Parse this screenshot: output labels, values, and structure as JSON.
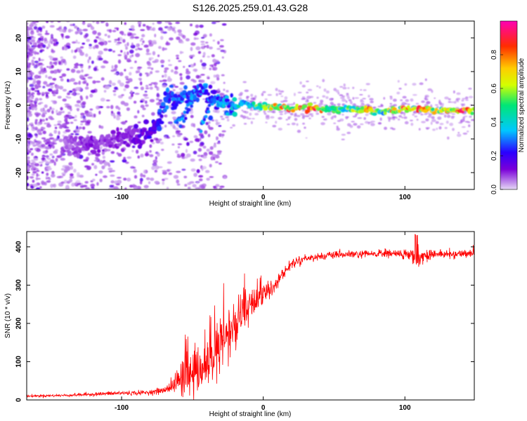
{
  "figure_title": "S126.2025.259.01.43.G28",
  "chart_data": [
    {
      "type": "heatmap",
      "title": "S126.2025.259.01.43.G28",
      "xlabel": "Height of straight line (km)",
      "ylabel": "Frequency (Hz)",
      "xlim": [
        -167,
        149
      ],
      "ylim": [
        -25,
        25
      ],
      "xticks": [
        -100,
        0,
        100
      ],
      "yticks": [
        -20,
        -10,
        0,
        10,
        20
      ],
      "colorbar": {
        "label": "Normalized spectral amplitude",
        "range": [
          0,
          1
        ],
        "ticks": [
          0.0,
          0.2,
          0.4,
          0.6,
          0.8
        ],
        "tick_labels": [
          "0.0",
          "0.2",
          "0.4",
          "0.6",
          "0.8"
        ],
        "colors": [
          "#e6d9f5",
          "#7a00d9",
          "#2a00ff",
          "#00c8ff",
          "#00e676",
          "#d4ff00",
          "#ffcc00",
          "#ff2d00",
          "#ff00b4"
        ]
      },
      "ridge": {
        "x": [
          -140,
          -130,
          -120,
          -110,
          -100,
          -90,
          -80,
          -74,
          -70,
          -66,
          -62,
          -58,
          -54,
          -50,
          -46,
          -42,
          -38,
          -34,
          -30,
          -25,
          -20,
          -15,
          -10,
          -5,
          0,
          10,
          20,
          30,
          40,
          50,
          60,
          70,
          75,
          80,
          85,
          90,
          95,
          100,
          105,
          110,
          120,
          130,
          140,
          149
        ],
        "freq": [
          -11,
          -12,
          -11.5,
          -11,
          -10,
          -9,
          -8,
          -5,
          1,
          2,
          0,
          3,
          2,
          3,
          4,
          4,
          3,
          2,
          1,
          0,
          -1,
          1,
          0,
          -0.5,
          0,
          -0.5,
          -1,
          -1,
          -1,
          -1.2,
          -1.3,
          -1.5,
          -1.5,
          -1.8,
          -1.8,
          -1.5,
          -1.2,
          -1,
          -1,
          -1,
          -1.5,
          -1.6,
          -1.5,
          -1.5
        ],
        "amplitude": [
          0.08,
          0.1,
          0.12,
          0.1,
          0.12,
          0.15,
          0.2,
          0.25,
          0.3,
          0.32,
          0.28,
          0.35,
          0.3,
          0.35,
          0.3,
          0.32,
          0.3,
          0.3,
          0.4,
          0.35,
          0.4,
          0.45,
          0.5,
          0.55,
          0.6,
          0.75,
          0.85,
          0.9,
          0.9,
          0.6,
          0.55,
          0.75,
          0.85,
          0.6,
          0.5,
          0.8,
          0.65,
          0.9,
          0.7,
          0.9,
          0.7,
          0.75,
          0.9,
          0.8
        ]
      },
      "side_branch": {
        "x": [
          -62,
          -56,
          -50
        ],
        "freq": [
          -6,
          -3,
          0
        ]
      }
    },
    {
      "type": "line",
      "xlabel": "Height of straight line (km)",
      "ylabel": "SNR (10 * v/v)",
      "xlim": [
        -167,
        149
      ],
      "ylim": [
        0,
        440
      ],
      "xticks": [
        -100,
        0,
        100
      ],
      "yticks": [
        0,
        100,
        200,
        300,
        400
      ],
      "series": [
        {
          "name": "SNR",
          "color": "#ff0000",
          "x": [
            -167,
            -140,
            -120,
            -100,
            -90,
            -80,
            -70,
            -65,
            -60,
            -55,
            -50,
            -45,
            -40,
            -35,
            -30,
            -25,
            -20,
            -15,
            -10,
            -5,
            0,
            5,
            10,
            15,
            20,
            25,
            30,
            40,
            50,
            60,
            70,
            80,
            90,
            100,
            105,
            108,
            112,
            120,
            130,
            140,
            149
          ],
          "mean": [
            10,
            12,
            15,
            18,
            18,
            20,
            25,
            35,
            50,
            70,
            60,
            65,
            90,
            110,
            140,
            170,
            190,
            210,
            240,
            260,
            275,
            290,
            310,
            335,
            355,
            365,
            370,
            375,
            378,
            380,
            380,
            382,
            383,
            380,
            378,
            370,
            375,
            382,
            380,
            382,
            385
          ],
          "noise": [
            3,
            3,
            4,
            5,
            5,
            5,
            8,
            15,
            30,
            55,
            40,
            35,
            45,
            60,
            70,
            65,
            60,
            50,
            40,
            35,
            25,
            20,
            15,
            12,
            10,
            9,
            8,
            8,
            8,
            8,
            9,
            9,
            10,
            12,
            15,
            30,
            15,
            10,
            9,
            9,
            9
          ]
        }
      ]
    }
  ]
}
